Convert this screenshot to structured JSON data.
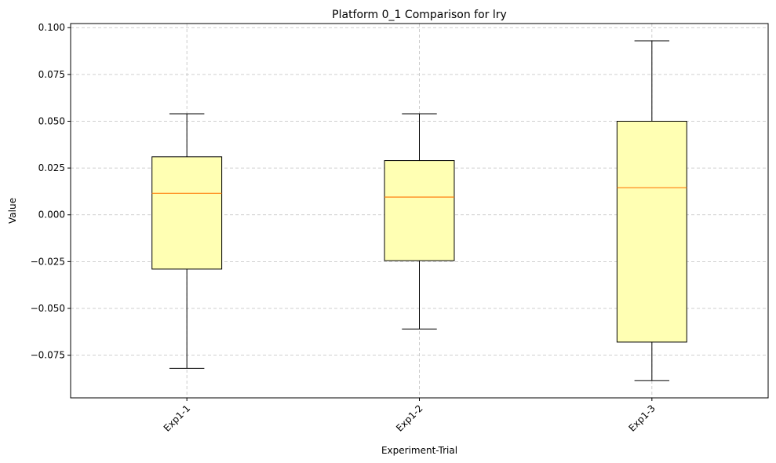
{
  "chart_data": {
    "type": "boxplot",
    "title": "Platform 0_1 Comparison for lry",
    "xlabel": "Experiment-Trial",
    "ylabel": "Value",
    "categories": [
      "Exp1-1",
      "Exp1-2",
      "Exp1-3"
    ],
    "boxes": [
      {
        "name": "Exp1-1",
        "whisker_low": -0.082,
        "q1": -0.029,
        "median": 0.0115,
        "q3": 0.031,
        "whisker_high": 0.054
      },
      {
        "name": "Exp1-2",
        "whisker_low": -0.061,
        "q1": -0.0245,
        "median": 0.0095,
        "q3": 0.029,
        "whisker_high": 0.054
      },
      {
        "name": "Exp1-3",
        "whisker_low": -0.0885,
        "q1": -0.068,
        "median": 0.0145,
        "q3": 0.05,
        "whisker_high": 0.093
      }
    ],
    "yticks": [
      "0.100",
      "0.075",
      "0.050",
      "0.025",
      "0.000",
      "−0.025",
      "−0.050",
      "−0.075"
    ],
    "ytick_values": [
      0.1,
      0.075,
      0.05,
      0.025,
      0.0,
      -0.025,
      -0.05,
      -0.075
    ],
    "ylim": [
      -0.0978,
      0.1022
    ],
    "grid": true,
    "colors": {
      "box_fill": "#ffffb3",
      "median": "#ff7f0e",
      "edge": "#000000",
      "grid": "#c0c0c0"
    }
  }
}
